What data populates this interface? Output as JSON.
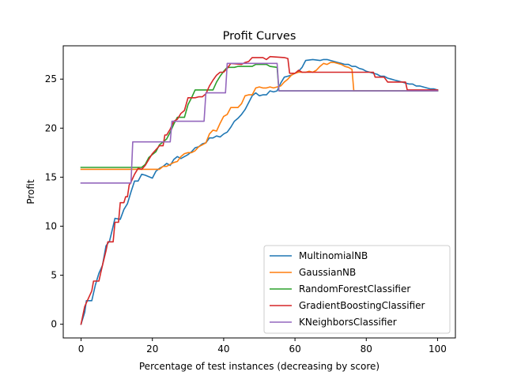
{
  "chart_data": {
    "type": "line",
    "title": "Profit Curves",
    "xlabel": "Percentage of test instances (decreasing by score)",
    "ylabel": "Profit",
    "xlim": [
      -5,
      105
    ],
    "ylim": [
      -1.4,
      28.4
    ],
    "xticks": [
      0,
      20,
      40,
      60,
      80,
      100
    ],
    "yticks": [
      0,
      5,
      10,
      15,
      20,
      25
    ],
    "grid": false,
    "legend_position": "lower-right",
    "series": [
      {
        "name": "MultinomialNB",
        "color": "#1f77b4",
        "points": [
          [
            0,
            0
          ],
          [
            1,
            1.2
          ],
          [
            1.5,
            2.4
          ],
          [
            3,
            2.4
          ],
          [
            4,
            4
          ],
          [
            5,
            5.2
          ],
          [
            6,
            6
          ],
          [
            7,
            8
          ],
          [
            8,
            8.5
          ],
          [
            9,
            10
          ],
          [
            9.5,
            10.8
          ],
          [
            11,
            10.7
          ],
          [
            12,
            11.7
          ],
          [
            13,
            12.3
          ],
          [
            14,
            13.5
          ],
          [
            15,
            14.6
          ],
          [
            16,
            14.6
          ],
          [
            17,
            15.3
          ],
          [
            18,
            15.2
          ],
          [
            20,
            14.9
          ],
          [
            21,
            15.6
          ],
          [
            22,
            15.9
          ],
          [
            23,
            16.1
          ],
          [
            24,
            16.4
          ],
          [
            25,
            16.2
          ],
          [
            26,
            16.8
          ],
          [
            27,
            17.1
          ],
          [
            28,
            16.9
          ],
          [
            29,
            17.1
          ],
          [
            30,
            17.3
          ],
          [
            31,
            17.6
          ],
          [
            32,
            18
          ],
          [
            33,
            18.1
          ],
          [
            34,
            18.4
          ],
          [
            35,
            18.5
          ],
          [
            36,
            19
          ],
          [
            37,
            19
          ],
          [
            38,
            19.2
          ],
          [
            39,
            19.1
          ],
          [
            40,
            19.4
          ],
          [
            41,
            19.6
          ],
          [
            42,
            20.1
          ],
          [
            43,
            20.7
          ],
          [
            44,
            21
          ],
          [
            45,
            21.4
          ],
          [
            46,
            21.9
          ],
          [
            47,
            22.6
          ],
          [
            48,
            23.3
          ],
          [
            49,
            23.6
          ],
          [
            50,
            23.3
          ],
          [
            51,
            23.4
          ],
          [
            52,
            23.4
          ],
          [
            53,
            23.8
          ],
          [
            54,
            23.7
          ],
          [
            55,
            23.8
          ],
          [
            56,
            24.6
          ],
          [
            57,
            25.2
          ],
          [
            58,
            25.3
          ],
          [
            59,
            25.4
          ],
          [
            60,
            25.6
          ],
          [
            61,
            25.8
          ],
          [
            62,
            26.2
          ],
          [
            63,
            26.9
          ],
          [
            65,
            27
          ],
          [
            67,
            26.9
          ],
          [
            68,
            27
          ],
          [
            69,
            27
          ],
          [
            70,
            26.9
          ],
          [
            71,
            26.8
          ],
          [
            72,
            26.7
          ],
          [
            73,
            26.6
          ],
          [
            74,
            26.5
          ],
          [
            75,
            26.5
          ],
          [
            76,
            26.3
          ],
          [
            77,
            26.3
          ],
          [
            78,
            26.1
          ],
          [
            79,
            26
          ],
          [
            80,
            25.8
          ],
          [
            81,
            25.7
          ],
          [
            82,
            25.6
          ],
          [
            83,
            25.5
          ],
          [
            84,
            25.3
          ],
          [
            85,
            25.3
          ],
          [
            86,
            25.1
          ],
          [
            87,
            25
          ],
          [
            88,
            24.9
          ],
          [
            89,
            24.8
          ],
          [
            90,
            24.7
          ],
          [
            91,
            24.6
          ],
          [
            92,
            24.5
          ],
          [
            93,
            24.5
          ],
          [
            94,
            24.3
          ],
          [
            95,
            24.3
          ],
          [
            96,
            24.2
          ],
          [
            97,
            24.1
          ],
          [
            98,
            24
          ],
          [
            99,
            24
          ],
          [
            100,
            23.9
          ]
        ]
      },
      {
        "name": "GaussianNB",
        "color": "#ff7f0e",
        "points": [
          [
            0,
            15.8
          ],
          [
            22,
            15.8
          ],
          [
            23,
            16.1
          ],
          [
            24,
            16.1
          ],
          [
            25,
            16.3
          ],
          [
            26,
            16.5
          ],
          [
            27,
            16.6
          ],
          [
            28,
            17.1
          ],
          [
            29,
            17.4
          ],
          [
            30,
            17.5
          ],
          [
            31,
            17.5
          ],
          [
            32,
            17.7
          ],
          [
            33,
            18.1
          ],
          [
            34,
            18.3
          ],
          [
            35,
            18.5
          ],
          [
            36,
            19.4
          ],
          [
            37,
            19.8
          ],
          [
            38,
            19.7
          ],
          [
            39,
            20.5
          ],
          [
            40,
            21.2
          ],
          [
            41,
            21.4
          ],
          [
            42,
            22.1
          ],
          [
            43,
            22.1
          ],
          [
            44,
            22.1
          ],
          [
            45,
            22.5
          ],
          [
            46,
            23.3
          ],
          [
            47,
            23.4
          ],
          [
            48,
            23.4
          ],
          [
            49,
            24.1
          ],
          [
            50,
            24.2
          ],
          [
            51,
            24.1
          ],
          [
            52,
            24.1
          ],
          [
            53,
            24.2
          ],
          [
            54,
            24.1
          ],
          [
            55,
            24.2
          ],
          [
            56,
            24.3
          ],
          [
            57,
            24.7
          ],
          [
            58,
            25
          ],
          [
            59,
            25.4
          ],
          [
            60,
            25.6
          ],
          [
            61,
            25.7
          ],
          [
            62,
            25.7
          ],
          [
            63,
            25.7
          ],
          [
            64,
            25.8
          ],
          [
            65,
            25.7
          ],
          [
            66,
            25.9
          ],
          [
            67,
            26.3
          ],
          [
            68,
            26.6
          ],
          [
            69,
            26.5
          ],
          [
            70,
            26.7
          ],
          [
            71,
            26.7
          ],
          [
            72,
            26.6
          ],
          [
            73,
            26.5
          ],
          [
            74,
            26.3
          ],
          [
            75,
            26.2
          ],
          [
            76,
            26
          ],
          [
            76.5,
            23.8
          ],
          [
            100,
            23.8
          ]
        ]
      },
      {
        "name": "RandomForestClassifier",
        "color": "#2ca02c",
        "points": [
          [
            0,
            16
          ],
          [
            15,
            16
          ],
          [
            17,
            16
          ],
          [
            18,
            16.3
          ],
          [
            19,
            17
          ],
          [
            20,
            17.3
          ],
          [
            21,
            17.6
          ],
          [
            22,
            18.3
          ],
          [
            23,
            18.6
          ],
          [
            24,
            18.9
          ],
          [
            25,
            19.6
          ],
          [
            26,
            20.4
          ],
          [
            27,
            21.1
          ],
          [
            29,
            21.1
          ],
          [
            30,
            22.4
          ],
          [
            31,
            23.1
          ],
          [
            32,
            23.9
          ],
          [
            37,
            23.9
          ],
          [
            38,
            24.7
          ],
          [
            39,
            25.3
          ],
          [
            40,
            25.8
          ],
          [
            41,
            26.2
          ],
          [
            43,
            26.2
          ],
          [
            44,
            26.3
          ],
          [
            48,
            26.3
          ],
          [
            49,
            26.5
          ],
          [
            52,
            26.5
          ],
          [
            53,
            26.3
          ],
          [
            55,
            26.2
          ],
          [
            55.5,
            23.8
          ],
          [
            100,
            23.8
          ]
        ]
      },
      {
        "name": "GradientBoostingClassifier",
        "color": "#d62728",
        "points": [
          [
            0,
            0
          ],
          [
            1,
            1.8
          ],
          [
            2,
            2.6
          ],
          [
            3,
            3.4
          ],
          [
            3.5,
            4.4
          ],
          [
            5,
            4.4
          ],
          [
            5.5,
            5.2
          ],
          [
            6,
            6
          ],
          [
            7,
            7.5
          ],
          [
            7.5,
            8.4
          ],
          [
            9,
            8.4
          ],
          [
            9.5,
            10.4
          ],
          [
            10.5,
            10.4
          ],
          [
            11,
            12.4
          ],
          [
            12,
            12.4
          ],
          [
            12.5,
            13
          ],
          [
            13,
            13
          ],
          [
            13.5,
            14.2
          ],
          [
            14,
            14.5
          ],
          [
            15,
            15.3
          ],
          [
            16,
            15.9
          ],
          [
            17,
            15.8
          ],
          [
            18,
            16.2
          ],
          [
            19,
            16.8
          ],
          [
            20,
            17.4
          ],
          [
            21,
            17.8
          ],
          [
            22,
            18.2
          ],
          [
            23,
            18.2
          ],
          [
            23.5,
            19.3
          ],
          [
            24,
            19.3
          ],
          [
            25,
            19.9
          ],
          [
            26,
            20.7
          ],
          [
            27,
            20.9
          ],
          [
            28,
            21.5
          ],
          [
            29,
            21.8
          ],
          [
            30,
            23.1
          ],
          [
            32,
            23.1
          ],
          [
            33,
            23.2
          ],
          [
            34,
            23.2
          ],
          [
            35,
            23.5
          ],
          [
            36,
            24.3
          ],
          [
            37,
            24.9
          ],
          [
            38,
            25.4
          ],
          [
            39,
            25.7
          ],
          [
            40,
            25.7
          ],
          [
            41,
            26.1
          ],
          [
            42,
            26.6
          ],
          [
            45,
            26.5
          ],
          [
            46,
            26.7
          ],
          [
            47,
            26.8
          ],
          [
            48,
            27.2
          ],
          [
            51,
            27.2
          ],
          [
            52,
            27
          ],
          [
            53,
            27.3
          ],
          [
            57,
            27.2
          ],
          [
            58,
            27.1
          ],
          [
            58.5,
            25.6
          ],
          [
            60,
            25.6
          ],
          [
            61,
            25.9
          ],
          [
            62,
            25.7
          ],
          [
            82,
            25.7
          ],
          [
            82.5,
            25.2
          ],
          [
            85,
            25.2
          ],
          [
            86,
            24.7
          ],
          [
            91,
            24.7
          ],
          [
            91.5,
            23.9
          ],
          [
            100,
            23.9
          ]
        ]
      },
      {
        "name": "KNeighborsClassifier",
        "color": "#9467bd",
        "points": [
          [
            0,
            14.4
          ],
          [
            14,
            14.4
          ],
          [
            14.5,
            18.6
          ],
          [
            25,
            18.6
          ],
          [
            25.5,
            20.7
          ],
          [
            34.5,
            20.7
          ],
          [
            35,
            23.6
          ],
          [
            40.5,
            23.6
          ],
          [
            41,
            26.6
          ],
          [
            55,
            26.6
          ],
          [
            55.5,
            23.8
          ],
          [
            100,
            23.8
          ]
        ]
      }
    ]
  }
}
